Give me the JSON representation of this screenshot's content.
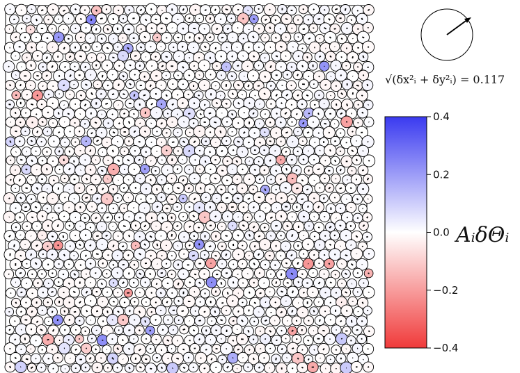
{
  "chart_data": {
    "type": "scatter",
    "title": "",
    "description_source": "granular packing displacement and rotation field",
    "panel": {
      "particle_count_approx": 1200,
      "particle_stroke": "#000000",
      "particle_fill_neutral": "#ffffff"
    },
    "scale_indicator": {
      "formula": "√(δx²ᵢ + δy²ᵢ) = 0.117",
      "value": 0.117
    },
    "colorbar": {
      "label": "AᵢδΘᵢ",
      "range": [
        -0.4,
        0.4
      ],
      "ticks": [
        0.4,
        0.2,
        0.0,
        -0.2,
        -0.4
      ],
      "tick_labels": [
        "0.4",
        "0.2",
        "0.0",
        "−0.2",
        "−0.4"
      ],
      "colormap": "bwr",
      "color_max": "#3a3af0",
      "color_mid": "#ffffff",
      "color_min": "#f03a3a"
    }
  }
}
